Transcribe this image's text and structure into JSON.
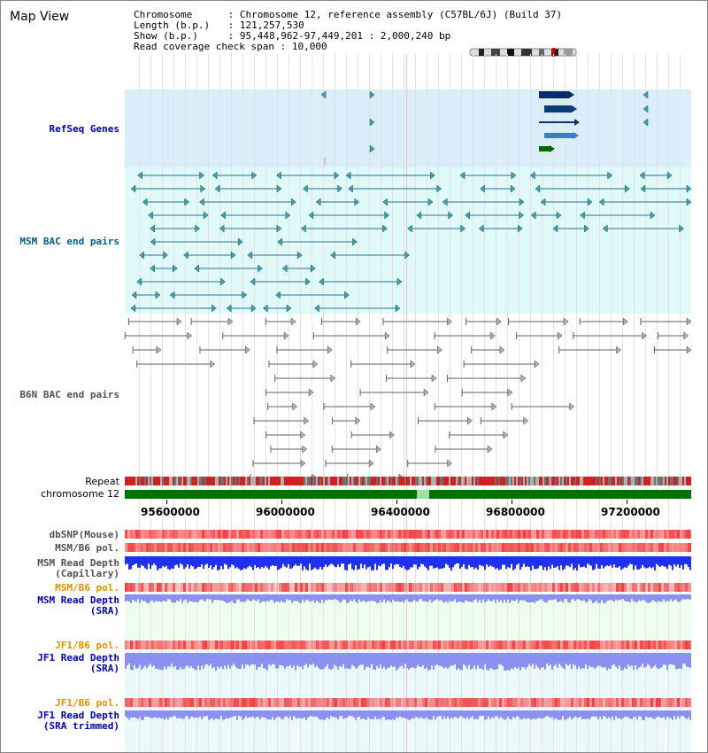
{
  "header": {
    "title": "Map View",
    "chromosome_label": "Chromosome",
    "chromosome_value": "Chromosome 12, reference assembly (C57BL/6J) (Build 37)",
    "length_label": "Length (b.p.)",
    "length_value": "121,257,530",
    "show_label": "Show (b.p.)",
    "show_value": "95,448,962-97,449,201 : 2,000,240 bp",
    "coverage_label": "Read coverage check span",
    "coverage_value": "10,000"
  },
  "tracks": {
    "refseq": "RefSeq Genes",
    "msm_bac": "MSM BAC end pairs",
    "b6n_bac": "B6N BAC end pairs",
    "repeat": "Repeat",
    "chromosome": "chromosome 12",
    "dbsnp": "dbSNP(Mouse)",
    "msm_b6_pol": "MSM/B6 pol.",
    "msm_read_depth_cap_1": "MSM Read Depth",
    "msm_read_depth_cap_2": "(Capillary)",
    "msm_b6_pol2": "MSM/B6 pol.",
    "msm_read_depth_sra_1": "MSM Read Depth",
    "msm_read_depth_sra_2": "(SRA)",
    "jf1_b6_pol": "JF1/B6 pol.",
    "jf1_read_depth_sra_1": "JF1 Read Depth",
    "jf1_read_depth_sra_2": "(SRA)",
    "jf1_b6_pol2": "JF1/B6 pol.",
    "jf1_read_depth_trim_1": "JF1 Read Depth",
    "jf1_read_depth_trim_2": "(SRA trimmed)"
  },
  "axis": {
    "ticks": [
      "95600000",
      "96000000",
      "96400000",
      "96800000",
      "97200000"
    ]
  },
  "colors": {
    "refseq_bg": "#d9eef8",
    "msm_bg": "#e0fafa",
    "b6n_bg": "#ffffff",
    "snp_red": "#f04040",
    "depth_blue": "#2030f0",
    "depth_light": "#8c90f0",
    "label_blue": "#0000aa",
    "label_teal": "#006080",
    "label_orange": "#e09000",
    "chrom_green": "#007000"
  }
}
